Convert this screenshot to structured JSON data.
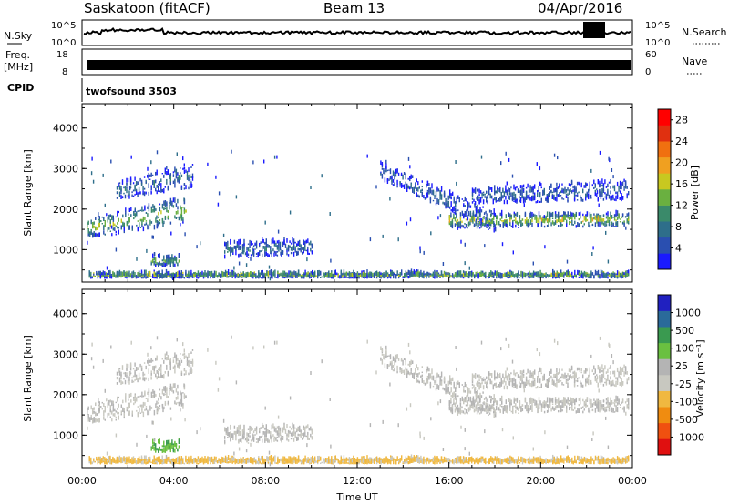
{
  "header": {
    "station": "Saskatoon (fitACF)",
    "beam": "Beam 13",
    "date": "04/Apr/2016"
  },
  "panels": {
    "nsky_label": "N.Sky",
    "nsky_ticks": [
      "10^5",
      "10^0"
    ],
    "nsearch_label": "N.Search",
    "nsearch_ticks": [
      "10^5",
      "10^0"
    ],
    "freq_label": "Freq.",
    "freq_unit": "[MHz]",
    "freq_ticks": [
      "18",
      "8"
    ],
    "nave_label": "Nave",
    "nave_ticks": [
      "60",
      "0"
    ],
    "cpid_label": "CPID",
    "cpid_value": "twofsound 3503"
  },
  "colors": {
    "power_scale": [
      "#1a1aff",
      "#2a4fb0",
      "#2e6e8a",
      "#3a8a6a",
      "#6ab040",
      "#c8c820",
      "#f0a020",
      "#f07010",
      "#e03010",
      "#ff0000"
    ],
    "velocity_scale": [
      "#e01010",
      "#f05010",
      "#f08c10",
      "#f0b840",
      "#c8c8c0",
      "#b4b4b4",
      "#6ac040",
      "#3a9a50",
      "#2a6a9a",
      "#2020c0"
    ]
  },
  "chart_data": [
    {
      "type": "heatmap",
      "name": "power",
      "ylabel": "Slant Range [km]",
      "yticks": [
        "1000",
        "2000",
        "3000",
        "4000"
      ],
      "ylim": [
        200,
        4600
      ],
      "xlim": [
        0,
        24
      ],
      "colorbar_label": "Power [dB]",
      "colorbar_ticks": [
        "4",
        "8",
        "12",
        "16",
        "20",
        "24",
        "28"
      ],
      "clim": [
        0,
        30
      ],
      "bands": [
        {
          "t0": 0.2,
          "t1": 4.5,
          "r0": 1250,
          "r1": 1750,
          "r0b": 1600,
          "r1b": 2250,
          "level": 14
        },
        {
          "t0": 1.5,
          "t1": 4.8,
          "r0": 2200,
          "r1": 2600,
          "r0b": 2500,
          "r1b": 3100,
          "level": 6
        },
        {
          "t0": 3.0,
          "t1": 4.2,
          "r0": 550,
          "r1": 800,
          "r0b": 550,
          "r1b": 800,
          "level": 12
        },
        {
          "t0": 6.2,
          "t1": 10.0,
          "r0": 750,
          "r1": 1150,
          "r0b": 850,
          "r1b": 1200,
          "level": 6
        },
        {
          "t0": 13.0,
          "t1": 18.0,
          "r0": 2700,
          "r1": 3100,
          "r0b": 1400,
          "r1b": 1900,
          "level": 5
        },
        {
          "t0": 16.0,
          "t1": 23.8,
          "r0": 1500,
          "r1": 1850,
          "r0b": 1550,
          "r1b": 1850,
          "level": 16
        },
        {
          "t0": 17.0,
          "t1": 23.8,
          "r0": 2100,
          "r1": 2450,
          "r0b": 2200,
          "r1b": 2700,
          "level": 5
        },
        {
          "t0": 0.3,
          "t1": 23.8,
          "r0": 280,
          "r1": 380,
          "r0b": 280,
          "r1b": 380,
          "level": 14
        }
      ]
    },
    {
      "type": "heatmap",
      "name": "velocity",
      "ylabel": "Slant Range [km]",
      "xlabel": "Time UT",
      "yticks": [
        "1000",
        "2000",
        "3000",
        "4000"
      ],
      "xticks": [
        "00:00",
        "04:00",
        "08:00",
        "12:00",
        "16:00",
        "20:00",
        "00:00"
      ],
      "ylim": [
        200,
        4600
      ],
      "xlim": [
        0,
        24
      ],
      "colorbar_label": "Velocity [m s⁻¹]",
      "colorbar_ticks": [
        "-1000",
        "-500",
        "-100",
        "-25",
        "25",
        "100",
        "500",
        "1000"
      ],
      "bands": [
        {
          "t0": 0.2,
          "t1": 4.5,
          "r0": 1250,
          "r1": 1750,
          "r0b": 1600,
          "r1b": 2250,
          "vel": "ground"
        },
        {
          "t0": 1.5,
          "t1": 4.8,
          "r0": 2200,
          "r1": 2600,
          "r0b": 2500,
          "r1b": 3100,
          "vel": "ground"
        },
        {
          "t0": 3.0,
          "t1": 4.2,
          "r0": 550,
          "r1": 800,
          "r0b": 550,
          "r1b": 800,
          "vel": "pos100"
        },
        {
          "t0": 6.2,
          "t1": 10.0,
          "r0": 750,
          "r1": 1150,
          "r0b": 850,
          "r1b": 1200,
          "vel": "ground"
        },
        {
          "t0": 13.0,
          "t1": 18.0,
          "r0": 2700,
          "r1": 3100,
          "r0b": 1400,
          "r1b": 1900,
          "vel": "ground"
        },
        {
          "t0": 16.0,
          "t1": 23.8,
          "r0": 1500,
          "r1": 1850,
          "r0b": 1550,
          "r1b": 1850,
          "vel": "ground"
        },
        {
          "t0": 17.0,
          "t1": 23.8,
          "r0": 2100,
          "r1": 2450,
          "r0b": 2200,
          "r1b": 2700,
          "vel": "ground"
        },
        {
          "t0": 0.3,
          "t1": 23.8,
          "r0": 280,
          "r1": 380,
          "r0b": 280,
          "r1b": 380,
          "vel": "neg100"
        }
      ]
    }
  ]
}
